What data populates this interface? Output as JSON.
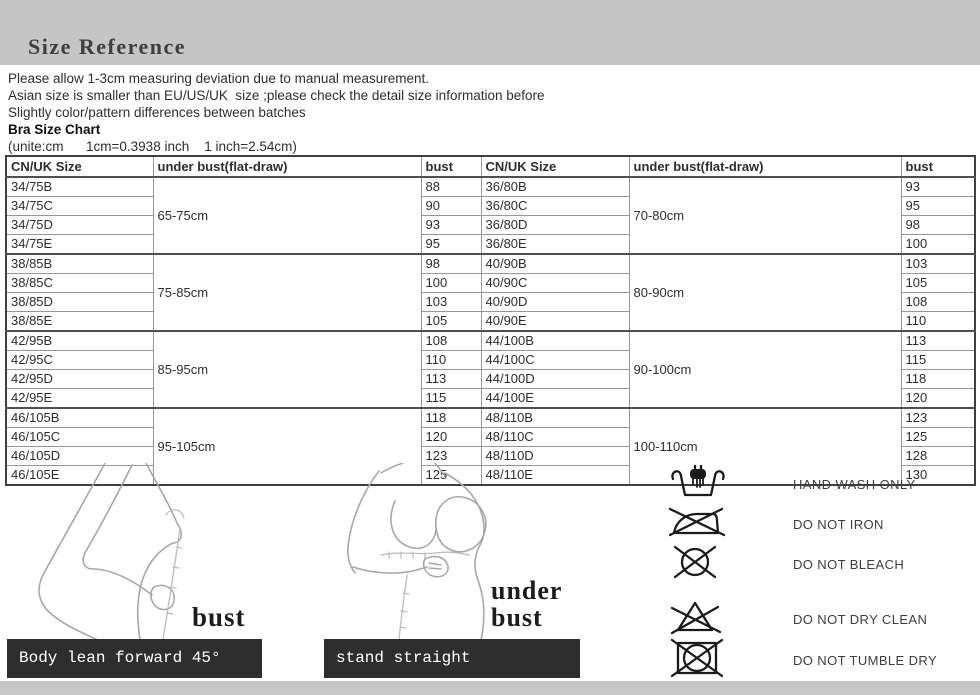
{
  "header": {
    "title": "Size Reference"
  },
  "notes": [
    "Please allow 1-3cm measuring deviation due to manual measurement.",
    "Asian size is smaller than EU/US/UK  size ;please check the detail size information before",
    "Slightly color/pattern differences between batches"
  ],
  "chart": {
    "title": "Bra Size Chart",
    "units_note": "(unite:cm      1cm=0.3938 inch    1 inch=2.54cm)"
  },
  "table": {
    "headers": [
      "CN/UK Size",
      "under bust(flat-draw)",
      "bust",
      "CN/UK Size",
      "under bust(flat-draw)",
      "bust"
    ],
    "left_groups": [
      {
        "under_bust": "65-75cm",
        "rows": [
          [
            "34/75B",
            "88"
          ],
          [
            "34/75C",
            "90"
          ],
          [
            "34/75D",
            "93"
          ],
          [
            "34/75E",
            "95"
          ]
        ]
      },
      {
        "under_bust": "75-85cm",
        "rows": [
          [
            "38/85B",
            "98"
          ],
          [
            "38/85C",
            "100"
          ],
          [
            "38/85D",
            "103"
          ],
          [
            "38/85E",
            "105"
          ]
        ]
      },
      {
        "under_bust": "85-95cm",
        "rows": [
          [
            "42/95B",
            "108"
          ],
          [
            "42/95C",
            "110"
          ],
          [
            "42/95D",
            "113"
          ],
          [
            "42/95E",
            "115"
          ]
        ]
      },
      {
        "under_bust": "95-105cm",
        "rows": [
          [
            "46/105B",
            "118"
          ],
          [
            "46/105C",
            "120"
          ],
          [
            "46/105D",
            "123"
          ],
          [
            "46/105E",
            "125"
          ]
        ]
      }
    ],
    "right_groups": [
      {
        "under_bust": "70-80cm",
        "rows": [
          [
            "36/80B",
            "93"
          ],
          [
            "36/80C",
            "95"
          ],
          [
            "36/80D",
            "98"
          ],
          [
            "36/80E",
            "100"
          ]
        ]
      },
      {
        "under_bust": "80-90cm",
        "rows": [
          [
            "40/90B",
            "103"
          ],
          [
            "40/90C",
            "105"
          ],
          [
            "40/90D",
            "108"
          ],
          [
            "40/90E",
            "110"
          ]
        ]
      },
      {
        "under_bust": "90-100cm",
        "rows": [
          [
            "44/100B",
            "113"
          ],
          [
            "44/100C",
            "115"
          ],
          [
            "44/100D",
            "118"
          ],
          [
            "44/100E",
            "120"
          ]
        ]
      },
      {
        "under_bust": "100-110cm",
        "rows": [
          [
            "48/110B",
            "123"
          ],
          [
            "48/110C",
            "125"
          ],
          [
            "48/110D",
            "128"
          ],
          [
            "48/110E",
            "130"
          ]
        ]
      }
    ]
  },
  "measure_guide": {
    "bust_label": "bust",
    "under_bust_lines": [
      "under",
      "bust"
    ],
    "pose_boxes": [
      "Body lean forward 45°",
      "stand straight"
    ]
  },
  "care": {
    "items": [
      {
        "icon": "hand-wash-icon",
        "label": "HAND WASH ONLY"
      },
      {
        "icon": "do-not-iron-icon",
        "label": "DO NOT IRON"
      },
      {
        "icon": "do-not-bleach-icon",
        "label": "DO NOT BLEACH"
      },
      {
        "icon": "do-not-dry-clean-icon",
        "label": "DO NOT DRY CLEAN"
      },
      {
        "icon": "do-not-tumble-dry-icon",
        "label": "DO NOT TUMBLE DRY"
      }
    ]
  },
  "colors": {
    "top_band": "#c5c5c5",
    "footer_band": "#c6c6c6",
    "pose_box_bg": "#2e2e2e",
    "table_border_dark": "#3f3f3f",
    "table_border_light": "#979797",
    "text": "#2e2e2e"
  }
}
